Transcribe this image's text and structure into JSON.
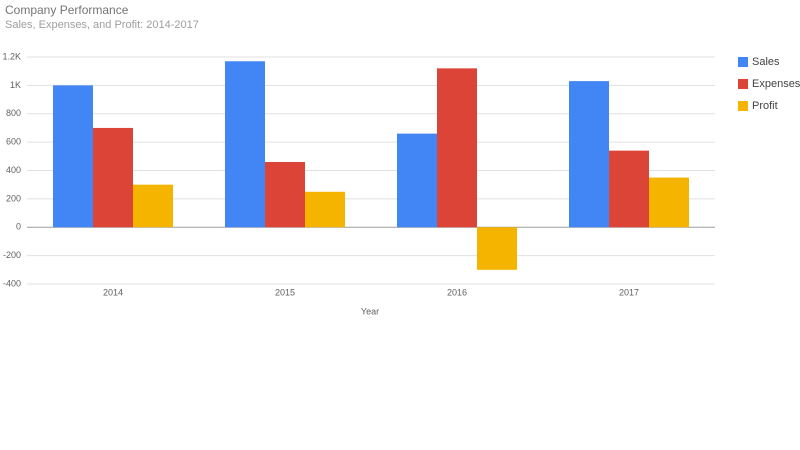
{
  "chart_data": {
    "type": "bar",
    "title": "Company Performance",
    "subtitle": "Sales, Expenses, and Profit: 2014-2017",
    "x_label": "Year",
    "categories": [
      "2014",
      "2015",
      "2016",
      "2017"
    ],
    "series": [
      {
        "name": "Sales",
        "color": "#4285f4",
        "values": [
          1000,
          1170,
          660,
          1030
        ]
      },
      {
        "name": "Expenses",
        "color": "#db4437",
        "values": [
          700,
          460,
          1120,
          540
        ]
      },
      {
        "name": "Profit",
        "color": "#f4b400",
        "values": [
          300,
          250,
          -300,
          350
        ]
      }
    ],
    "ylim": [
      -400,
      1200
    ],
    "yticks": [
      -400,
      -200,
      0,
      200,
      400,
      600,
      800,
      {
        "value": 1000,
        "label": "1K"
      },
      {
        "value": 1200,
        "label": "1.2K"
      }
    ],
    "grid": true,
    "legend": "right"
  }
}
